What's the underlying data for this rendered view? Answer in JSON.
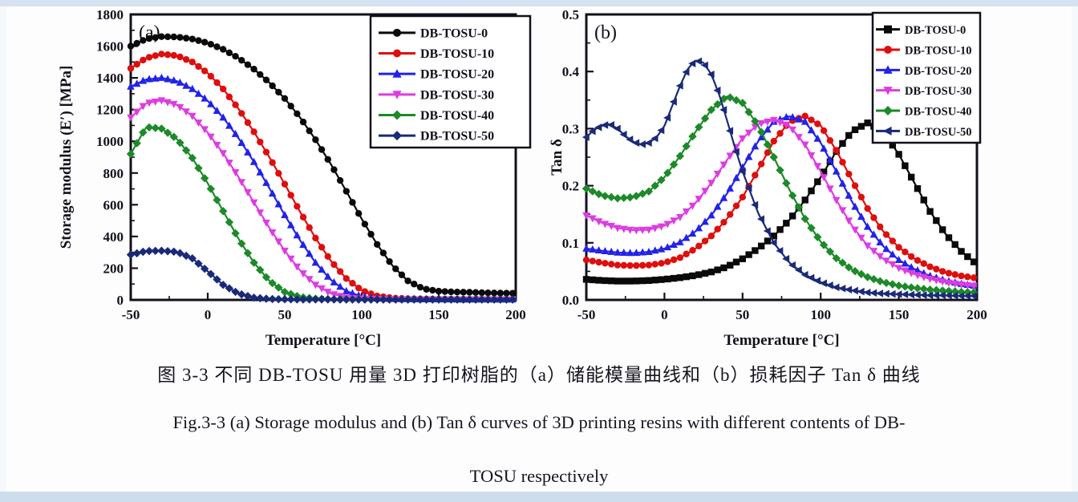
{
  "caption": {
    "line1_zh": "图 3-3 不同 DB-TOSU 用量 3D 打印树脂的（a）储能模量曲线和（b）损耗因子 Tan δ 曲线",
    "line2_en": "Fig.3-3 (a) Storage modulus and (b) Tan δ curves of 3D printing resins with different contents of DB-",
    "line3_en": "TOSU respectively"
  },
  "colors": {
    "series_black": "#0a0a0a",
    "series_red": "#df0e0e",
    "series_blue": "#2222e8",
    "series_magenta": "#dd3ce2",
    "series_green": "#1c8a28",
    "series_navy": "#1a2a78",
    "axis": "#12101c",
    "top_bar": "#d6e2f1",
    "bottom_bar": "#cdddee"
  },
  "chart_data": [
    {
      "id": "a",
      "type": "line",
      "panel_label": "(a)",
      "xlabel": "Temperature [°C]",
      "ylabel": "Storage modulus (E′) [MPa]",
      "xlim": [
        -50,
        200
      ],
      "ylim": [
        0,
        1800
      ],
      "xtick_vals": [
        -50,
        0,
        50,
        100,
        150,
        200
      ],
      "xtick_labels": [
        "-50",
        "0",
        "50",
        "100",
        "150",
        "200"
      ],
      "ytick_vals": [
        0,
        200,
        400,
        600,
        800,
        1000,
        1200,
        1400,
        1600,
        1800
      ],
      "ytick_labels": [
        "0",
        "200",
        "400",
        "600",
        "800",
        "1000",
        "1200",
        "1400",
        "1600",
        "1800"
      ],
      "grid": false,
      "legend_pos": "top-right",
      "marker_step": 4,
      "series": [
        {
          "name": "DB-TOSU-0",
          "color": "#0a0a0a",
          "marker": "circle",
          "x": [
            -50,
            -40,
            -30,
            -20,
            -10,
            0,
            10,
            20,
            30,
            40,
            50,
            60,
            70,
            80,
            90,
            100,
            110,
            120,
            130,
            140,
            150,
            160,
            170,
            180,
            190,
            200
          ],
          "y": [
            1600,
            1645,
            1660,
            1658,
            1645,
            1620,
            1580,
            1525,
            1455,
            1370,
            1270,
            1150,
            1010,
            855,
            685,
            510,
            350,
            215,
            120,
            70,
            55,
            50,
            48,
            45,
            43,
            42
          ]
        },
        {
          "name": "DB-TOSU-10",
          "color": "#df0e0e",
          "marker": "circle",
          "x": [
            -50,
            -40,
            -30,
            -20,
            -10,
            0,
            10,
            20,
            30,
            40,
            50,
            60,
            70,
            80,
            90,
            100,
            110,
            120,
            130,
            140,
            150,
            160,
            170,
            180,
            190,
            200
          ],
          "y": [
            1460,
            1525,
            1550,
            1540,
            1500,
            1430,
            1330,
            1205,
            1060,
            900,
            730,
            555,
            390,
            245,
            135,
            60,
            25,
            12,
            8,
            6,
            5,
            5,
            4,
            4,
            4,
            4
          ]
        },
        {
          "name": "DB-TOSU-20",
          "color": "#2222e8",
          "marker": "triangle-up",
          "x": [
            -50,
            -40,
            -30,
            -20,
            -10,
            0,
            10,
            20,
            30,
            40,
            50,
            60,
            70,
            80,
            90,
            100,
            110,
            120,
            130,
            140,
            150,
            160,
            170,
            180,
            190,
            200
          ],
          "y": [
            1345,
            1390,
            1400,
            1380,
            1330,
            1255,
            1150,
            1020,
            870,
            705,
            535,
            375,
            235,
            125,
            55,
            22,
            10,
            6,
            5,
            4,
            4,
            3,
            3,
            3,
            3,
            3
          ]
        },
        {
          "name": "DB-TOSU-30",
          "color": "#dd3ce2",
          "marker": "triangle-down",
          "x": [
            -50,
            -40,
            -30,
            -20,
            -10,
            0,
            10,
            20,
            30,
            40,
            50,
            60,
            70,
            80,
            90,
            100,
            110,
            120,
            130,
            140,
            150,
            160,
            170,
            180,
            190,
            200
          ],
          "y": [
            1150,
            1240,
            1258,
            1230,
            1160,
            1055,
            925,
            775,
            615,
            455,
            310,
            185,
            95,
            40,
            15,
            7,
            5,
            4,
            3,
            3,
            3,
            3,
            3,
            3,
            3,
            3
          ]
        },
        {
          "name": "DB-TOSU-40",
          "color": "#1c8a28",
          "marker": "diamond",
          "x": [
            -50,
            -40,
            -30,
            -20,
            -10,
            0,
            10,
            20,
            30,
            40,
            50,
            60,
            70,
            80,
            90,
            100,
            110,
            120,
            130,
            140,
            150,
            160,
            170,
            180,
            190,
            200
          ],
          "y": [
            920,
            1090,
            1080,
            1015,
            895,
            735,
            560,
            385,
            235,
            120,
            50,
            18,
            8,
            5,
            4,
            3,
            3,
            3,
            3,
            3,
            3,
            3,
            3,
            3,
            3,
            3
          ]
        },
        {
          "name": "DB-TOSU-50",
          "color": "#1a2a78",
          "marker": "diamond",
          "x": [
            -50,
            -40,
            -30,
            -20,
            -10,
            0,
            10,
            20,
            30,
            40,
            50,
            60,
            70,
            80,
            90,
            100,
            110,
            120,
            130,
            140,
            150,
            160,
            170,
            180,
            190,
            200
          ],
          "y": [
            285,
            308,
            310,
            303,
            262,
            180,
            95,
            40,
            14,
            6,
            4,
            3,
            3,
            3,
            2,
            2,
            2,
            2,
            2,
            2,
            2,
            2,
            2,
            2,
            2,
            2
          ]
        }
      ]
    },
    {
      "id": "b",
      "type": "line",
      "panel_label": "(b)",
      "xlabel": "Temperature [°C]",
      "ylabel": "Tan δ",
      "xlim": [
        -50,
        200
      ],
      "ylim": [
        0,
        0.5
      ],
      "xtick_vals": [
        -50,
        0,
        50,
        100,
        150,
        200
      ],
      "xtick_labels": [
        "-50",
        "0",
        "50",
        "100",
        "150",
        "200"
      ],
      "ytick_vals": [
        0,
        0.1,
        0.2,
        0.3,
        0.4,
        0.5
      ],
      "ytick_labels": [
        "0.0",
        "0.1",
        "0.2",
        "0.3",
        "0.4",
        "0.5"
      ],
      "grid": false,
      "legend_pos": "top-right",
      "marker_step": 4,
      "series": [
        {
          "name": "DB-TOSU-0",
          "color": "#0a0a0a",
          "marker": "square",
          "x": [
            -50,
            -40,
            -30,
            -20,
            -10,
            0,
            10,
            20,
            30,
            40,
            50,
            60,
            70,
            80,
            90,
            100,
            110,
            120,
            130,
            140,
            150,
            160,
            170,
            180,
            190,
            200
          ],
          "y": [
            0.036,
            0.034,
            0.033,
            0.033,
            0.034,
            0.036,
            0.039,
            0.043,
            0.049,
            0.058,
            0.072,
            0.09,
            0.112,
            0.14,
            0.175,
            0.215,
            0.26,
            0.295,
            0.31,
            0.295,
            0.255,
            0.205,
            0.155,
            0.115,
            0.085,
            0.062
          ]
        },
        {
          "name": "DB-TOSU-10",
          "color": "#df0e0e",
          "marker": "circle",
          "x": [
            -50,
            -40,
            -30,
            -20,
            -10,
            0,
            10,
            20,
            30,
            40,
            50,
            60,
            70,
            80,
            90,
            100,
            110,
            120,
            130,
            140,
            150,
            160,
            170,
            180,
            190,
            200
          ],
          "y": [
            0.07,
            0.065,
            0.061,
            0.06,
            0.061,
            0.065,
            0.074,
            0.09,
            0.112,
            0.142,
            0.18,
            0.228,
            0.278,
            0.312,
            0.322,
            0.305,
            0.262,
            0.21,
            0.16,
            0.12,
            0.092,
            0.072,
            0.058,
            0.048,
            0.042,
            0.038
          ]
        },
        {
          "name": "DB-TOSU-20",
          "color": "#2222e8",
          "marker": "triangle-up",
          "x": [
            -50,
            -40,
            -30,
            -20,
            -10,
            0,
            10,
            20,
            30,
            40,
            50,
            60,
            70,
            80,
            90,
            100,
            110,
            120,
            130,
            140,
            150,
            160,
            170,
            180,
            190,
            200
          ],
          "y": [
            0.09,
            0.086,
            0.083,
            0.082,
            0.084,
            0.09,
            0.101,
            0.12,
            0.148,
            0.186,
            0.232,
            0.278,
            0.312,
            0.322,
            0.312,
            0.275,
            0.225,
            0.172,
            0.128,
            0.094,
            0.07,
            0.054,
            0.042,
            0.034,
            0.028,
            0.024
          ]
        },
        {
          "name": "DB-TOSU-30",
          "color": "#dd3ce2",
          "marker": "triangle-down",
          "x": [
            -50,
            -40,
            -30,
            -20,
            -10,
            0,
            10,
            20,
            30,
            40,
            50,
            60,
            70,
            80,
            90,
            100,
            110,
            120,
            130,
            140,
            150,
            160,
            170,
            180,
            190,
            200
          ],
          "y": [
            0.148,
            0.135,
            0.126,
            0.122,
            0.123,
            0.13,
            0.145,
            0.17,
            0.205,
            0.245,
            0.283,
            0.308,
            0.315,
            0.305,
            0.272,
            0.225,
            0.175,
            0.13,
            0.095,
            0.072,
            0.056,
            0.045,
            0.037,
            0.031,
            0.027,
            0.024
          ]
        },
        {
          "name": "DB-TOSU-40",
          "color": "#1c8a28",
          "marker": "diamond",
          "x": [
            -50,
            -40,
            -30,
            -20,
            -10,
            0,
            10,
            20,
            30,
            40,
            50,
            60,
            70,
            80,
            90,
            100,
            110,
            120,
            130,
            140,
            150,
            160,
            170,
            180,
            190,
            200
          ],
          "y": [
            0.195,
            0.183,
            0.178,
            0.18,
            0.19,
            0.215,
            0.252,
            0.295,
            0.333,
            0.357,
            0.345,
            0.305,
            0.25,
            0.193,
            0.142,
            0.102,
            0.073,
            0.053,
            0.04,
            0.031,
            0.025,
            0.021,
            0.018,
            0.016,
            0.014,
            0.013
          ]
        },
        {
          "name": "DB-TOSU-50",
          "color": "#1a2a78",
          "marker": "triangle-left",
          "x": [
            -50,
            -45,
            -40,
            -35,
            -30,
            -25,
            -20,
            -15,
            -10,
            -5,
            0,
            5,
            10,
            15,
            20,
            25,
            30,
            35,
            40,
            45,
            50,
            60,
            70,
            80,
            90,
            100,
            110,
            120,
            130,
            140,
            150,
            160,
            170,
            180,
            190,
            200
          ],
          "y": [
            0.285,
            0.298,
            0.305,
            0.308,
            0.3,
            0.287,
            0.277,
            0.272,
            0.275,
            0.285,
            0.305,
            0.34,
            0.375,
            0.405,
            0.42,
            0.415,
            0.395,
            0.36,
            0.315,
            0.268,
            0.225,
            0.152,
            0.1,
            0.065,
            0.044,
            0.031,
            0.022,
            0.017,
            0.013,
            0.011,
            0.01,
            0.009,
            0.008,
            0.008,
            0.007,
            0.007
          ]
        }
      ]
    }
  ]
}
